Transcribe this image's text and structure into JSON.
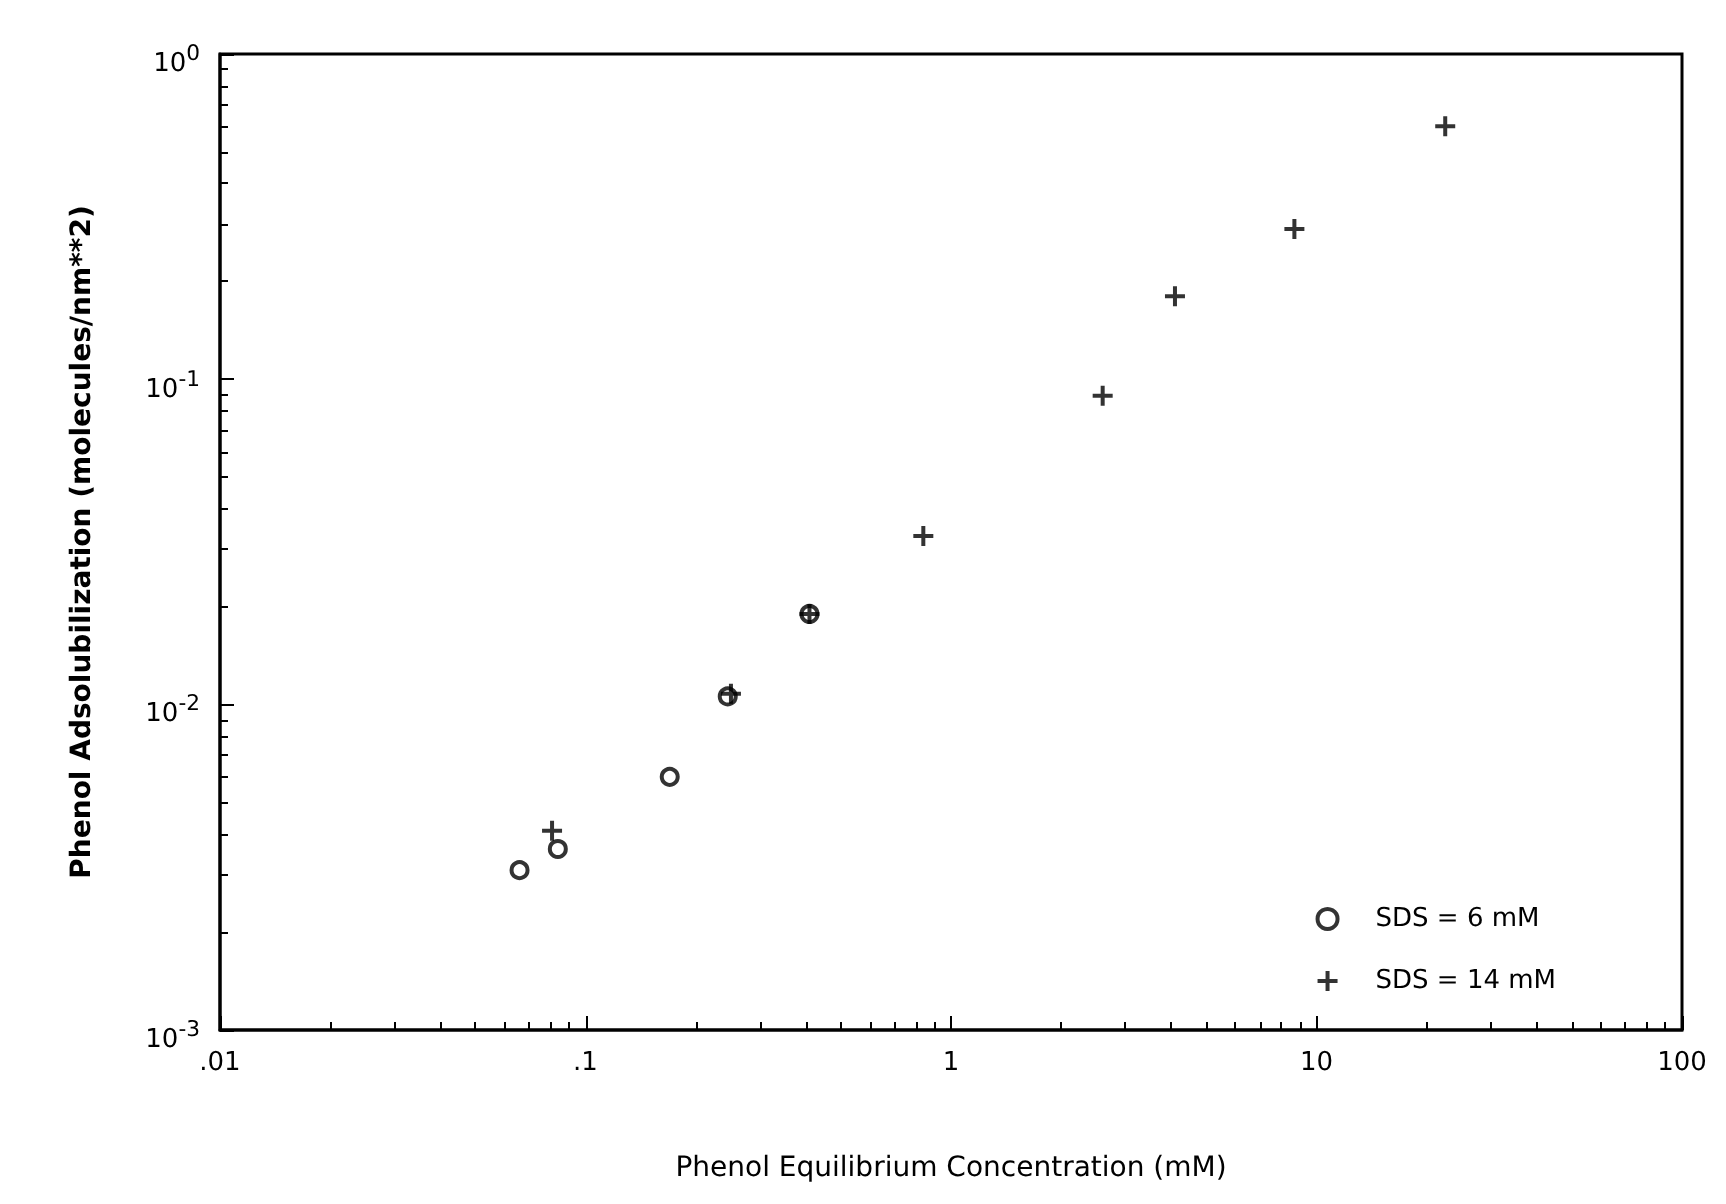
{
  "chart_data": {
    "type": "scatter",
    "xlabel": "Phenol Equilibrium Concentration (mM)",
    "ylabel": "Phenol Adsolubilization (molecules/nm**2)",
    "log": "xy",
    "grid": false,
    "legend": "bottom right",
    "xlim": [
      0.01,
      100
    ],
    "xticks": [
      {
        "value": 0.01,
        "label": ".01"
      },
      {
        "value": 0.1,
        "label": ".1"
      },
      1,
      10,
      100
    ],
    "ylim": [
      0.001,
      1
    ],
    "yticks": [
      {
        "value": 0.001,
        "label": "10$^{-3}$"
      },
      {
        "value": 0.01,
        "label": "10$^{-2}$"
      },
      {
        "value": 0.1,
        "label": "10$^{-1}$"
      },
      {
        "value": 1,
        "label": "10$^{0}$"
      }
    ],
    "series": [
      {
        "name": "SDS = 6 mM",
        "color": "#000000",
        "marker": "circle",
        "x": [
          0.066,
          0.084,
          0.17,
          0.245,
          0.41
        ],
        "values": [
          0.0031,
          0.0036,
          0.006,
          0.0106,
          0.019
        ]
      },
      {
        "name": "SDS = 14 mM",
        "color": "#000000",
        "marker": "cross",
        "x": [
          0.081,
          0.25,
          0.41,
          0.84,
          2.6,
          4.1,
          8.7,
          22.5
        ],
        "values": [
          0.0041,
          0.0108,
          0.019,
          0.033,
          0.089,
          0.18,
          0.29,
          0.6
        ]
      }
    ]
  }
}
